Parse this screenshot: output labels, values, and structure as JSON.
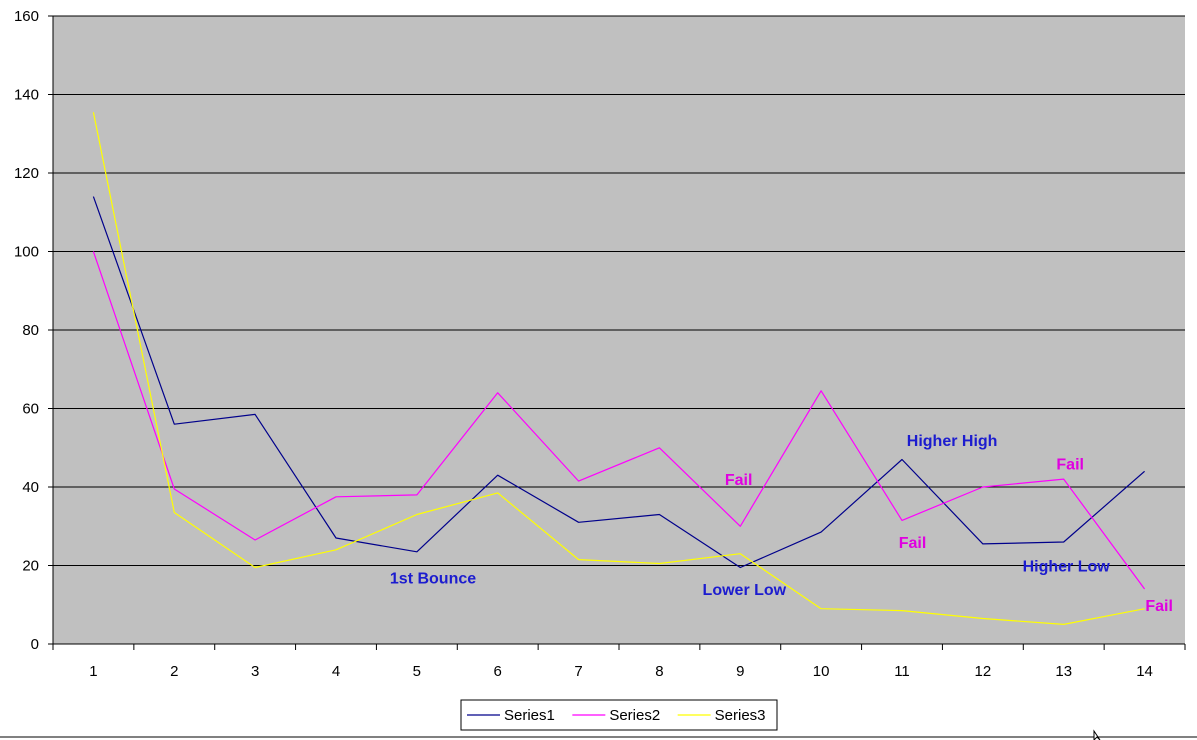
{
  "chart_data": {
    "type": "line",
    "x": [
      1,
      2,
      3,
      4,
      5,
      6,
      7,
      8,
      9,
      10,
      11,
      12,
      13,
      14
    ],
    "ylim": [
      0,
      160
    ],
    "yticks": [
      0,
      20,
      40,
      60,
      80,
      100,
      120,
      140,
      160
    ],
    "grid": "horizontal",
    "legend_position": "bottom",
    "plot_background": "#c0c0c0",
    "series": [
      {
        "name": "Series1",
        "color": "#00008b",
        "values": [
          114,
          56,
          58.5,
          27,
          23.5,
          43,
          31,
          33,
          19.5,
          28.5,
          47,
          25.5,
          26,
          44
        ]
      },
      {
        "name": "Series2",
        "color": "#ff00ff",
        "values": [
          100,
          39.5,
          26.5,
          37.5,
          38,
          64,
          41.5,
          50,
          30,
          64.5,
          31.5,
          40,
          42,
          14
        ]
      },
      {
        "name": "Series3",
        "color": "#ffff00",
        "values": [
          135.5,
          33.5,
          19.5,
          24,
          33,
          38.5,
          21.5,
          20.5,
          23,
          9,
          8.5,
          6.5,
          5,
          9
        ]
      }
    ],
    "annotations": [
      {
        "text": "1st Bounce",
        "x": 5.2,
        "y": 17,
        "color": "#1c1ccf"
      },
      {
        "text": "Fail",
        "x": 8.98,
        "y": 42,
        "color": "#e000e0"
      },
      {
        "text": "Lower Low",
        "x": 9.05,
        "y": 14,
        "color": "#1c1ccf"
      },
      {
        "text": "Higher High",
        "x": 11.62,
        "y": 52,
        "color": "#1c1ccf"
      },
      {
        "text": "Fail",
        "x": 11.13,
        "y": 26,
        "color": "#e000e0"
      },
      {
        "text": "Fail",
        "x": 13.08,
        "y": 46,
        "color": "#e000e0"
      },
      {
        "text": "Higher Low",
        "x": 13.03,
        "y": 20,
        "color": "#1c1ccf"
      },
      {
        "text": "Fail",
        "x": 14.18,
        "y": 10,
        "color": "#e000e0"
      }
    ]
  }
}
